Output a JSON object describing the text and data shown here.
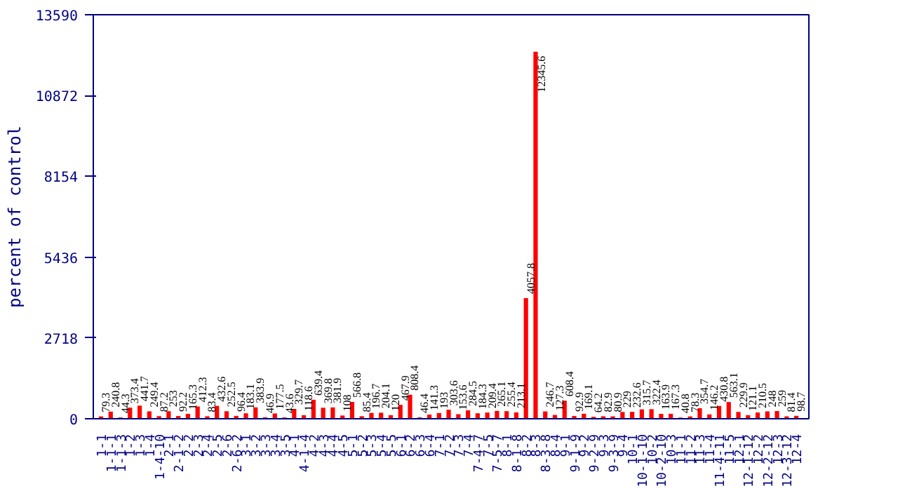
{
  "chart_data": {
    "type": "bar",
    "ylabel": "percent of control",
    "categories": [
      "1-1",
      "1-1-1",
      "1-1-3",
      "1-2",
      "1-3",
      "1-4",
      "1-4-10",
      "2-1",
      "2-1-2",
      "2-2",
      "2-3",
      "2-4",
      "2-5",
      "2-6",
      "2-6-2",
      "3-1",
      "3-2",
      "3-3",
      "3-4",
      "3-5",
      "4-1",
      "4-1-4",
      "4-2",
      "4-3",
      "4-4",
      "4-5",
      "5-1",
      "5-2",
      "5-3",
      "5-4",
      "5-5",
      "6-1",
      "6-2",
      "6-3",
      "6-4",
      "7-1",
      "7-2",
      "7-3",
      "7-4",
      "7-4-7",
      "7-5",
      "7-5-7",
      "8-1",
      "8-1-8",
      "8-2",
      "8-3",
      "8-3-8",
      "8-4",
      "9-1",
      "9-1-9",
      "9-2",
      "9-2-9",
      "9-3",
      "9-3-9",
      "9-4",
      "10-1",
      "10-1-10",
      "10-2",
      "10-2-10",
      "10-3",
      "11-1",
      "11-2",
      "11-3",
      "11-4",
      "11-4-11",
      "11-5",
      "12-1",
      "12-1-12",
      "12-2",
      "12-2-12",
      "12-3",
      "12-3-12",
      "12-4"
    ],
    "values": [
      79.3,
      240.8,
      44.3,
      373.4,
      441.7,
      249.4,
      87.2,
      253,
      92.2,
      165.3,
      412.3,
      83.4,
      432.6,
      252.5,
      96.4,
      183.1,
      383.9,
      46.9,
      177.5,
      43.6,
      329.7,
      118.6,
      639.4,
      369.8,
      381.9,
      108,
      566.8,
      85.4,
      196.7,
      204.1,
      120,
      467.9,
      808.4,
      46.4,
      141.3,
      193,
      303.6,
      153.6,
      284.5,
      184.3,
      209.4,
      265.1,
      255.4,
      213.1,
      4057.8,
      12345.6,
      246.7,
      127.3,
      608.4,
      92.9,
      169.1,
      64.2,
      82.9,
      80.9,
      229,
      232.6,
      315.7,
      322.4,
      163.9,
      167.3,
      40.8,
      78.3,
      354.7,
      146.2,
      430.8,
      563.1,
      229.9,
      121.1,
      210.5,
      248,
      259,
      81.4,
      98.7
    ],
    "color": "#ff0000",
    "data_labels": true,
    "ylim": [
      0,
      13590
    ],
    "yticks": [
      0,
      2718,
      5436,
      8154,
      10872,
      13590
    ],
    "grid": false
  }
}
